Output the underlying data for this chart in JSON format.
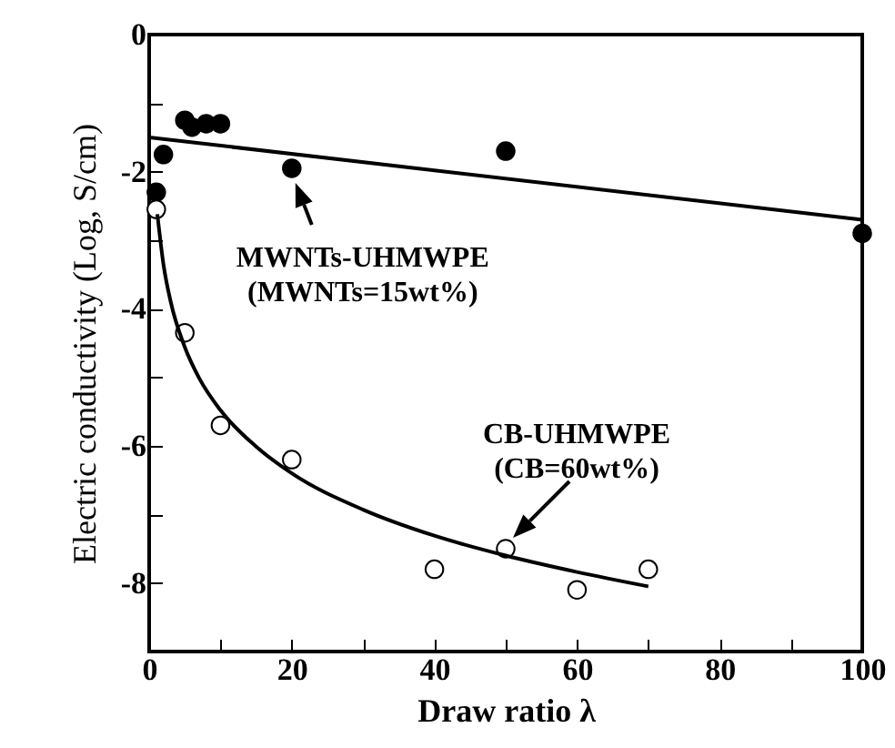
{
  "chart_data": {
    "type": "scatter",
    "xlabel": "Draw ratio λ",
    "ylabel": "Electric conductivity (Log, S/cm)",
    "xlim": [
      0,
      100
    ],
    "ylim": [
      -9,
      0
    ],
    "xticks": [
      0,
      {
        "value": 10,
        "label": null
      },
      20,
      {
        "value": 30,
        "label": null
      },
      40,
      {
        "value": 50,
        "label": null
      },
      60,
      {
        "value": 70,
        "label": null
      },
      80,
      {
        "value": 90,
        "label": null
      },
      100
    ],
    "yticks": [
      {
        "value": -9,
        "label": null
      },
      -8,
      {
        "value": -7,
        "label": null
      },
      -6,
      {
        "value": -5,
        "label": null
      },
      -4,
      {
        "value": -3,
        "label": null
      },
      -2,
      {
        "value": -1,
        "label": null
      },
      0
    ],
    "grid": false,
    "series": [
      {
        "marker": "circle",
        "color": "#000000",
        "x": [
          1,
          2,
          5,
          6,
          8,
          10,
          20,
          50,
          100
        ],
        "values": [
          -2.3,
          -1.75,
          -1.25,
          -1.35,
          -1.3,
          -1.3,
          -1.95,
          -1.7,
          -2.9
        ]
      },
      {
        "marker": "circle",
        "color": "#ffffff",
        "x": [
          1,
          5,
          10,
          20,
          40,
          50,
          60,
          70
        ],
        "values": [
          -2.55,
          -4.35,
          -5.7,
          -6.2,
          -7.8,
          -7.5,
          -8.1,
          -7.8
        ]
      },
      {
        "type": "line",
        "marker": "none",
        "line_style": "solid",
        "color": "#000000",
        "x": [
          0,
          100
        ],
        "values": [
          -1.5,
          -2.7
        ]
      },
      {
        "type": "line",
        "marker": "none",
        "line_style": "solid",
        "color": "#000000",
        "x": [
          1.15,
          2,
          3,
          5,
          7,
          10,
          15,
          20,
          30,
          40,
          50,
          60,
          70
        ],
        "values": [
          -2.62,
          -3.35,
          -3.89,
          -4.56,
          -5.01,
          -5.48,
          -6.01,
          -6.4,
          -6.93,
          -7.31,
          -7.6,
          -7.84,
          -8.05
        ]
      }
    ],
    "annotations": [
      {
        "text": "MWNTs-UHMWPE\n(MWNTs=15wt%)",
        "x": 20,
        "y": -1.95
      },
      {
        "text": "CB-UHMWPE\n(CB=60wt%)",
        "x": 50,
        "y": -7.5
      }
    ]
  }
}
